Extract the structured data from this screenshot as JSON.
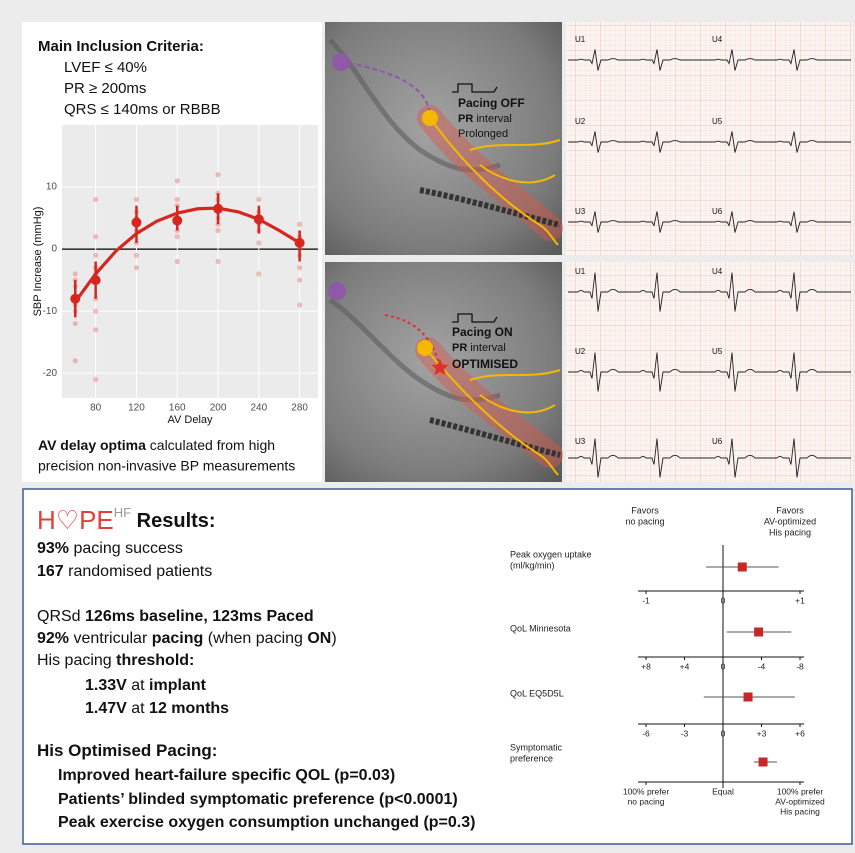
{
  "inclusion": {
    "title": "Main Inclusion Criteria:",
    "items": [
      "LVEF ≤ 40%",
      "PR ≥ 200ms",
      "QRS ≤ 140ms or RBBB"
    ]
  },
  "chart_data": {
    "type": "scatter",
    "x_label": "AV Delay",
    "y_label": "SBP Increase (mmHg)",
    "xlim": [
      47,
      298
    ],
    "ylim": [
      -24,
      20
    ],
    "xticks": [
      80,
      120,
      160,
      200,
      240,
      280
    ],
    "yticks": [
      -20,
      -10,
      0,
      10
    ],
    "grid": true,
    "points": {
      "color": "#e0534e",
      "x": [
        60,
        60,
        60,
        60,
        60,
        60,
        60,
        80,
        80,
        80,
        80,
        80,
        80,
        80,
        80,
        80,
        120,
        120,
        120,
        120,
        120,
        120,
        120,
        160,
        160,
        160,
        160,
        160,
        160,
        160,
        200,
        200,
        200,
        200,
        200,
        200,
        200,
        200,
        240,
        240,
        240,
        240,
        240,
        240,
        240,
        280,
        280,
        280,
        280,
        280,
        280,
        280
      ],
      "y": [
        -4,
        -6,
        -9,
        -10,
        -12,
        -18,
        -5,
        8,
        2,
        -1,
        -3,
        -8,
        -10,
        -13,
        -21,
        -4,
        8,
        6,
        3,
        1,
        -1,
        -3,
        5,
        11,
        8,
        7,
        5,
        2,
        -2,
        3,
        12,
        9,
        8,
        6,
        5,
        3,
        -2,
        4,
        8,
        6,
        4,
        3,
        1,
        -4,
        5,
        4,
        2,
        -1,
        -3,
        -5,
        -9,
        0
      ]
    },
    "fit": {
      "color": "#d7261e",
      "x": [
        60,
        80,
        100,
        120,
        140,
        160,
        180,
        200,
        220,
        240,
        260,
        280
      ],
      "values": [
        -8.5,
        -4,
        -0.3,
        2.5,
        4.5,
        5.8,
        6.5,
        6.6,
        6,
        4.8,
        3,
        1
      ]
    },
    "means": {
      "color": "#d7261e",
      "x": [
        60,
        80,
        120,
        160,
        200,
        240,
        280
      ],
      "values": [
        -8,
        -5,
        4.3,
        4.6,
        6.5,
        4.8,
        1
      ],
      "ci_low": [
        -11,
        -8,
        1,
        3,
        4,
        2.5,
        -2
      ],
      "ci_high": [
        -5,
        -2,
        7,
        7,
        9,
        7,
        3
      ]
    }
  },
  "caption": {
    "bold": "AV delay optima",
    "rest": " calculated from high",
    "line2": "precision non-invasive BP measurements"
  },
  "angiograms": [
    {
      "title": "Pacing OFF",
      "pr": "PR",
      "interval": " interval",
      "status": "Prolonged"
    },
    {
      "title": "Pacing ON",
      "pr": "PR",
      "interval": " interval",
      "status": "OPTIMISED"
    }
  ],
  "ecg": [
    {
      "leads": [
        "U1",
        "U4",
        "U2",
        "U5",
        "U3",
        "U6"
      ]
    },
    {
      "leads": [
        "U1",
        "U4",
        "U2",
        "U5",
        "U3",
        "U6"
      ]
    }
  ],
  "results": {
    "logo": "H♡PE",
    "logo_sup": "HF",
    "title": " Results:",
    "lines": [
      {
        "segments": [
          {
            "text": "93%",
            "bold": true
          },
          {
            "text": " pacing success",
            "bold": false
          }
        ]
      },
      {
        "segments": [
          {
            "text": "167",
            "bold": true
          },
          {
            "text": " randomised patients",
            "bold": false
          }
        ]
      },
      {
        "segments": [
          {
            "text": "QRSd ",
            "bold": false
          },
          {
            "text": "126ms baseline, 123ms Paced",
            "bold": true
          }
        ]
      },
      {
        "segments": [
          {
            "text": "92%",
            "bold": true
          },
          {
            "text": " ventricular ",
            "bold": false
          },
          {
            "text": "pacing",
            "bold": true
          },
          {
            "text": " (when pacing ",
            "bold": false
          },
          {
            "text": "ON",
            "bold": true
          },
          {
            "text": ")",
            "bold": false
          }
        ]
      },
      {
        "segments": [
          {
            "text": "His pacing ",
            "bold": false
          },
          {
            "text": "threshold:",
            "bold": true
          }
        ]
      },
      {
        "segments": [
          {
            "text": "1.33V",
            "bold": true
          },
          {
            "text": " at ",
            "bold": false
          },
          {
            "text": "implant",
            "bold": true
          }
        ]
      },
      {
        "segments": [
          {
            "text": "1.47V",
            "bold": true
          },
          {
            "text": " at ",
            "bold": false
          },
          {
            "text": "12 months",
            "bold": true
          }
        ]
      },
      {
        "segments": [
          {
            "text": "His Optimised Pacing:",
            "bold": true
          }
        ]
      },
      {
        "segments": [
          {
            "text": "Improved heart-failure specific QOL (p=0.03)",
            "bold": true
          }
        ]
      },
      {
        "segments": [
          {
            "text": "Patients’ blinded symptomatic preference (p<0.0001)",
            "bold": true
          }
        ]
      },
      {
        "segments": [
          {
            "text": "Peak exercise oxygen consumption unchanged (p=0.3)",
            "bold": true
          }
        ]
      }
    ]
  },
  "forest": {
    "favors_left": [
      "Favors",
      "no pacing"
    ],
    "favors_right": [
      "Favors",
      "AV-optimized",
      "His pacing"
    ],
    "color": "#c62828",
    "rows": [
      {
        "label": [
          "Peak oxygen uptake",
          "(ml/kg/min)"
        ],
        "xlim": [
          -1,
          1
        ],
        "xticks": [
          -1,
          0,
          {
            "value": 1,
            "label": "+1"
          }
        ],
        "estimate": 0.25,
        "ci": [
          -0.22,
          0.72
        ]
      },
      {
        "label": [
          "QoL Minnesota"
        ],
        "xlim": [
          8,
          -8
        ],
        "xticks": [
          {
            "value": 8,
            "label": "+8"
          },
          {
            "value": 4,
            "label": "+4"
          },
          0,
          -4,
          -8
        ],
        "estimate": -3.7,
        "ci": [
          -0.4,
          -7.1
        ]
      },
      {
        "label": [
          "QoL EQ5D5L"
        ],
        "xlim": [
          -6,
          6
        ],
        "xticks": [
          -6,
          -3,
          0,
          {
            "value": 3,
            "label": "+3"
          },
          {
            "value": 6,
            "label": "+6"
          }
        ],
        "estimate": 1.95,
        "ci": [
          -1.5,
          5.6
        ]
      },
      {
        "label": [
          "Symptomatic",
          "preference"
        ],
        "xlim": [
          -100,
          100
        ],
        "xticks": [
          {
            "value": -100,
            "label": [
              "100% prefer",
              "no pacing"
            ]
          },
          {
            "value": 0,
            "label": [
              "Equal"
            ]
          },
          {
            "value": 100,
            "label": [
              "100% prefer",
              "AV-optimized",
              "His pacing"
            ]
          }
        ],
        "estimate": 52,
        "ci": [
          40,
          70
        ]
      }
    ]
  }
}
